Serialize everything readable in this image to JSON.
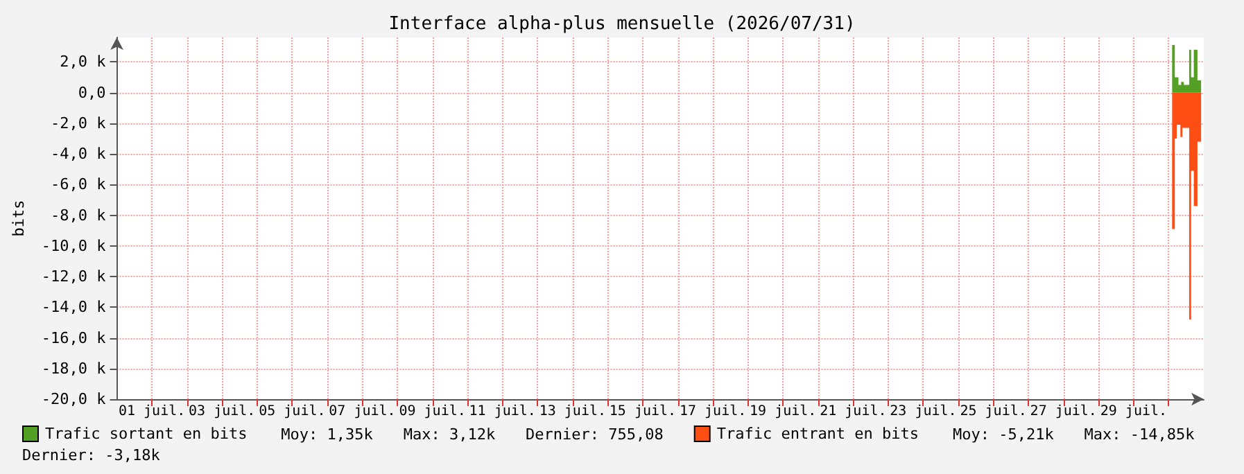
{
  "chart_data": {
    "type": "area",
    "title": "Interface alpha-plus mensuelle (2026/07/31)",
    "ylabel": "bits",
    "xlim": [
      "2026-06-30",
      "2026-07-31"
    ],
    "xticks": [
      {
        "value": "2026-07-01",
        "label": "01 juil."
      },
      {
        "value": "2026-07-02",
        "label": null
      },
      {
        "value": "2026-07-03",
        "label": "03 juil."
      },
      {
        "value": "2026-07-04",
        "label": null
      },
      {
        "value": "2026-07-05",
        "label": "05 juil."
      },
      {
        "value": "2026-07-06",
        "label": null
      },
      {
        "value": "2026-07-07",
        "label": "07 juil."
      },
      {
        "value": "2026-07-08",
        "label": null
      },
      {
        "value": "2026-07-09",
        "label": "09 juil."
      },
      {
        "value": "2026-07-10",
        "label": null
      },
      {
        "value": "2026-07-11",
        "label": "11 juil."
      },
      {
        "value": "2026-07-12",
        "label": null
      },
      {
        "value": "2026-07-13",
        "label": "13 juil."
      },
      {
        "value": "2026-07-14",
        "label": null
      },
      {
        "value": "2026-07-15",
        "label": "15 juil."
      },
      {
        "value": "2026-07-16",
        "label": null
      },
      {
        "value": "2026-07-17",
        "label": "17 juil."
      },
      {
        "value": "2026-07-18",
        "label": null
      },
      {
        "value": "2026-07-19",
        "label": "19 juil."
      },
      {
        "value": "2026-07-20",
        "label": null
      },
      {
        "value": "2026-07-21",
        "label": "21 juil."
      },
      {
        "value": "2026-07-22",
        "label": null
      },
      {
        "value": "2026-07-23",
        "label": "23 juil."
      },
      {
        "value": "2026-07-24",
        "label": null
      },
      {
        "value": "2026-07-25",
        "label": "25 juil."
      },
      {
        "value": "2026-07-26",
        "label": null
      },
      {
        "value": "2026-07-27",
        "label": "27 juil."
      },
      {
        "value": "2026-07-28",
        "label": null
      },
      {
        "value": "2026-07-29",
        "label": "29 juil."
      },
      {
        "value": "2026-07-30",
        "label": null
      }
    ],
    "ylim": [
      -20000,
      3600
    ],
    "yticks": [
      {
        "value": 2000,
        "label": "2,0 k"
      },
      {
        "value": 0,
        "label": "0,0"
      },
      {
        "value": -2000,
        "label": "-2,0 k"
      },
      {
        "value": -4000,
        "label": "-4,0 k"
      },
      {
        "value": -6000,
        "label": "-6,0 k"
      },
      {
        "value": -8000,
        "label": "-8,0 k"
      },
      {
        "value": -10000,
        "label": "-10,0 k"
      },
      {
        "value": -12000,
        "label": "-12,0 k"
      },
      {
        "value": -14000,
        "label": "-14,0 k"
      },
      {
        "value": -16000,
        "label": "-16,0 k"
      },
      {
        "value": -18000,
        "label": "-18,0 k"
      },
      {
        "value": -20000,
        "label": "-20,0 k"
      }
    ],
    "series": [
      {
        "name": "Trafic sortant en bits",
        "color": "#54a024",
        "x": [
          "2026-07-30T02:20",
          "2026-07-30T04:10",
          "2026-07-30T06:40",
          "2026-07-30T08:30",
          "2026-07-30T10:20",
          "2026-07-30T14:00",
          "2026-07-30T15:20",
          "2026-07-30T17:10",
          "2026-07-30T19:40",
          "2026-07-30T22:10"
        ],
        "values": [
          3100,
          1000,
          500,
          700,
          500,
          2800,
          1000,
          2800,
          800,
          800
        ]
      },
      {
        "name": "Trafic entrant en bits",
        "color": "#ff4e14",
        "x": [
          "2026-07-30T02:20",
          "2026-07-30T04:10",
          "2026-07-30T05:30",
          "2026-07-30T08:00",
          "2026-07-30T09:20",
          "2026-07-30T14:00",
          "2026-07-30T15:20",
          "2026-07-30T17:10",
          "2026-07-30T19:40",
          "2026-07-30T22:10"
        ],
        "values": [
          -8900,
          -3000,
          -2100,
          -2900,
          -2300,
          -14800,
          -5100,
          -7400,
          -3200,
          -3200
        ]
      }
    ],
    "annotations": [
      "Moy: 1,35k",
      "Max: 3,12k",
      "Dernier: 755,08",
      "Moy: -5,21k",
      "Max: -14,85k",
      "Dernier: -3,18k"
    ],
    "legend": "bottom",
    "grid": true,
    "marker": "none"
  }
}
